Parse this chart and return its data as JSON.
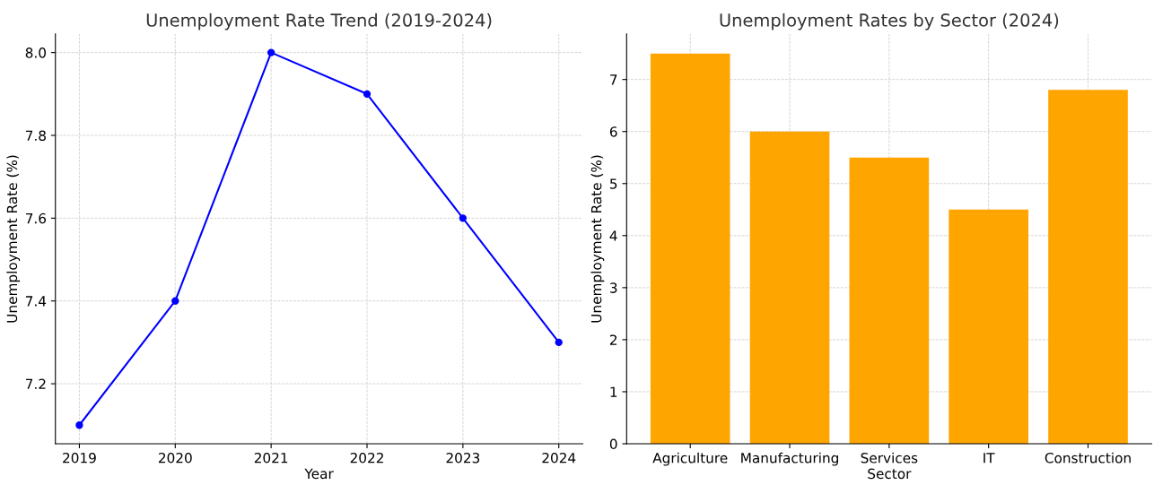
{
  "chart_data": [
    {
      "type": "line",
      "title": "Unemployment Rate Trend (2019-2024)",
      "xlabel": "Year",
      "ylabel": "Unemployment Rate (%)",
      "x": [
        2019,
        2020,
        2021,
        2022,
        2023,
        2024
      ],
      "series": [
        {
          "color": "#0000ff",
          "values": [
            7.1,
            7.4,
            8.0,
            7.9,
            7.6,
            7.3
          ]
        }
      ],
      "xlim": [
        2018.75,
        2024.25
      ],
      "xticks": [
        2019,
        2020,
        2021,
        2022,
        2023,
        2024
      ],
      "ylim": [
        7.055,
        8.045
      ],
      "yticks": [
        {
          "value": 7.2,
          "label": "7.2"
        },
        {
          "value": 7.4,
          "label": "7.4"
        },
        {
          "value": 7.6,
          "label": "7.6"
        },
        {
          "value": 7.8,
          "label": "7.8"
        },
        {
          "value": 8.0,
          "label": "8.0"
        }
      ],
      "grid": true,
      "marker": "circle",
      "line_style": "solid"
    },
    {
      "type": "bar",
      "title": "Unemployment Rates by Sector (2024)",
      "xlabel": "Sector",
      "ylabel": "Unemployment Rate (%)",
      "categories": [
        "Agriculture",
        "Manufacturing",
        "Services",
        "IT",
        "Construction"
      ],
      "series": [
        {
          "color": "#ffa500",
          "values": [
            7.5,
            6.0,
            5.5,
            4.5,
            6.8
          ]
        }
      ],
      "ylim": [
        0,
        7.875
      ],
      "yticks": [
        0,
        1,
        2,
        3,
        4,
        5,
        6,
        7
      ],
      "grid": true
    }
  ]
}
